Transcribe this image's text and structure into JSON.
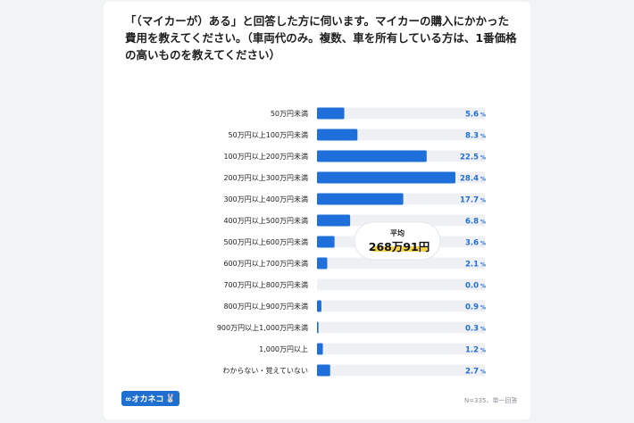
{
  "question": "「（マイカーが）ある」と回答した方に伺います。マイカーの購入にかかった費用を教えてください。（車両代のみ。複数、車を所有している方は、1番価格の高いものを教えてください）",
  "brand": {
    "logo_text": "∞オカネコ",
    "mascot_glyph": "🐰"
  },
  "footnote": "N=335、単一回答",
  "colors": {
    "bar": "#1e6fd9",
    "track": "#eef0f3",
    "label": "#222222",
    "value": "#1e6fd9",
    "highlight": "#f6d64a"
  },
  "chart_data": {
    "type": "bar",
    "orientation": "horizontal",
    "categories": [
      "50万円未満",
      "50万円以上100万円未満",
      "100万円以上200万円未満",
      "200万円以上300万円未満",
      "300万円以上400万円未満",
      "400万円以上500万円未満",
      "500万円以上600万円未満",
      "600万円以上700万円未満",
      "700万円以上800万円未満",
      "800万円以上900万円未満",
      "900万円以上1,000万円未満",
      "1,000万円以上",
      "わからない・覚えていない"
    ],
    "values": [
      5.6,
      8.3,
      22.5,
      28.4,
      17.7,
      6.8,
      3.6,
      2.1,
      0.0,
      0.9,
      0.3,
      1.2,
      2.7
    ],
    "value_labels": [
      "5.6",
      "8.3",
      "22.5",
      "28.4",
      "17.7",
      "6.8",
      "3.6",
      "2.1",
      "0.0",
      "0.9",
      "0.3",
      "1.2",
      "2.7"
    ],
    "unit": "%",
    "xlim": [
      0,
      28.4
    ],
    "annotation": {
      "label": "平均",
      "value": "268万91円"
    }
  }
}
